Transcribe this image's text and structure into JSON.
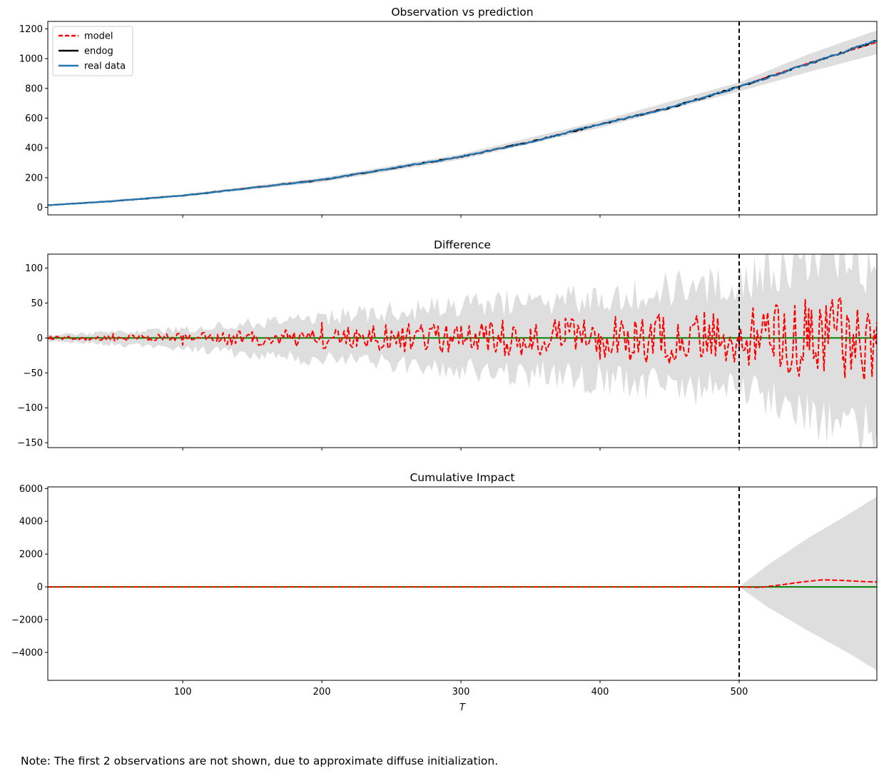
{
  "note": "Note: The first 2 observations are not shown, due to approximate diffuse initialization.",
  "colors": {
    "model": "#ff0000",
    "endog": "#000000",
    "real_data": "#1f77b4",
    "zero_line": "#008000",
    "band": "#dedede",
    "intervention_line": "#000000"
  },
  "chart_data": [
    {
      "type": "line",
      "title": "Observation vs prediction",
      "xlabel": "",
      "ylabel": "",
      "xlim": [
        3,
        599
      ],
      "ylim": [
        -50,
        1250
      ],
      "xticks": [
        100,
        200,
        300,
        400,
        500
      ],
      "show_xtick_labels": false,
      "yticks": [
        0,
        200,
        400,
        600,
        800,
        1000,
        1200
      ],
      "ytick_labels": [
        "0",
        "200",
        "400",
        "600",
        "800",
        "1000",
        "1200"
      ],
      "intervention_x": 500,
      "legend": {
        "placement": "top-left",
        "entries": [
          "model",
          "endog",
          "real data"
        ]
      },
      "series": [
        {
          "name": "model",
          "style": "dashed",
          "color": "#ff0000",
          "x": [
            3,
            50,
            100,
            150,
            200,
            250,
            300,
            350,
            400,
            450,
            500,
            550,
            599
          ],
          "values": [
            15,
            42,
            80,
            133,
            185,
            262,
            340,
            440,
            558,
            670,
            812,
            970,
            1110
          ]
        },
        {
          "name": "endog",
          "style": "solid",
          "color": "#000000",
          "x": [
            3,
            50,
            100,
            150,
            200,
            250,
            300,
            350,
            400,
            450,
            500,
            550,
            599
          ],
          "values": [
            15,
            42,
            80,
            132,
            185,
            262,
            340,
            440,
            558,
            670,
            810,
            965,
            1120
          ]
        },
        {
          "name": "real data",
          "style": "solid",
          "color": "#1f77b4",
          "x": [
            3,
            50,
            100,
            150,
            200,
            250,
            300,
            350,
            400,
            450,
            500,
            550,
            599
          ],
          "values": [
            15,
            42,
            80,
            132,
            185,
            262,
            340,
            440,
            558,
            670,
            810,
            965,
            1120
          ]
        }
      ],
      "band": {
        "x": [
          3,
          100,
          200,
          300,
          400,
          500,
          550,
          599
        ],
        "lower": [
          10,
          72,
          170,
          322,
          535,
          780,
          910,
          1030
        ],
        "upper": [
          20,
          88,
          200,
          358,
          581,
          840,
          1030,
          1190
        ]
      }
    },
    {
      "type": "line",
      "title": "Difference",
      "xlabel": "",
      "ylabel": "",
      "xlim": [
        3,
        599
      ],
      "ylim": [
        -157,
        120
      ],
      "xticks": [
        100,
        200,
        300,
        400,
        500
      ],
      "show_xtick_labels": false,
      "yticks": [
        -150,
        -100,
        -50,
        0,
        50,
        100
      ],
      "ytick_labels": [
        "−150",
        "−100",
        "−50",
        "0",
        "50",
        "100"
      ],
      "intervention_x": 500,
      "zero_line": 0,
      "series": [
        {
          "name": "model",
          "style": "dashed",
          "color": "#ff0000",
          "x": [
            5,
            25,
            50,
            75,
            100,
            125,
            150,
            175,
            200,
            225,
            250,
            275,
            300,
            325,
            350,
            375,
            400,
            425,
            450,
            475,
            500,
            525,
            550,
            575,
            590,
            599
          ],
          "values": [
            4,
            -3,
            6,
            -5,
            -10,
            5,
            -6,
            9,
            22,
            -12,
            10,
            -16,
            18,
            -20,
            14,
            28,
            -30,
            24,
            -34,
            38,
            -12,
            28,
            42,
            -25,
            -60,
            22
          ]
        }
      ],
      "band": {
        "x": [
          3,
          100,
          200,
          300,
          400,
          500,
          550,
          599
        ],
        "lower": [
          -4,
          -15,
          -30,
          -45,
          -58,
          -75,
          -100,
          -145
        ],
        "upper": [
          4,
          12,
          30,
          45,
          60,
          80,
          110,
          110
        ]
      }
    },
    {
      "type": "line",
      "title": "Cumulative Impact",
      "xlabel": "T",
      "ylabel": "",
      "xlim": [
        3,
        599
      ],
      "ylim": [
        -5700,
        6100
      ],
      "xticks": [
        100,
        200,
        300,
        400,
        500
      ],
      "show_xtick_labels": true,
      "xtick_labels": [
        "100",
        "200",
        "300",
        "400",
        "500"
      ],
      "yticks": [
        -4000,
        -2000,
        0,
        2000,
        4000,
        6000
      ],
      "ytick_labels": [
        "−4000",
        "−2000",
        "0",
        "2000",
        "4000",
        "6000"
      ],
      "intervention_x": 500,
      "zero_line": 0,
      "series": [
        {
          "name": "model",
          "style": "dashed",
          "color": "#ff0000",
          "x": [
            3,
            500,
            515,
            530,
            545,
            560,
            575,
            590,
            599
          ],
          "values": [
            0,
            0,
            -30,
            120,
            300,
            430,
            390,
            320,
            300
          ]
        }
      ],
      "band": {
        "x": [
          3,
          500,
          520,
          550,
          580,
          599
        ],
        "lower": [
          0,
          0,
          -1200,
          -2700,
          -4100,
          -5100
        ],
        "upper": [
          0,
          0,
          1300,
          3000,
          4500,
          5500
        ]
      }
    }
  ]
}
